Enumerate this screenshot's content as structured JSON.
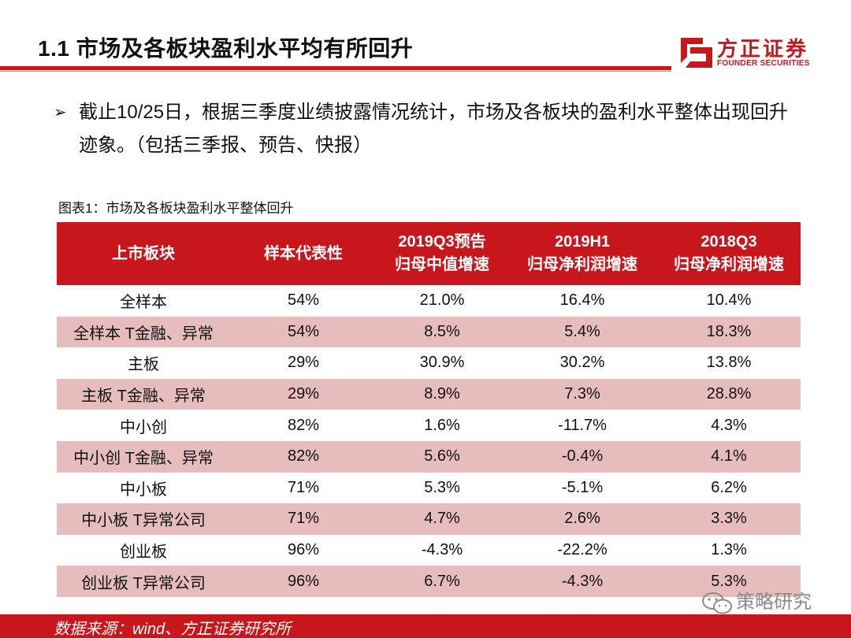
{
  "header": {
    "title": "1.1 市场及各板块盈利水平均有所回升",
    "logo_cn": "方正证券",
    "logo_en": "FOUNDER SECURITIES"
  },
  "bullet": {
    "symbol": "➢",
    "text": "截止10/25日，根据三季度业绩披露情况统计，市场及各板块的盈利水平整体出现回升迹象。（包括三季报、预告、快报）"
  },
  "table": {
    "caption": "图表1：市场及各板块盈利水平整体回升",
    "headers": [
      [
        "上市板块"
      ],
      [
        "样本代表性"
      ],
      [
        "2019Q3预告",
        "归母中值增速"
      ],
      [
        "2019H1",
        "归母净利润增速"
      ],
      [
        "2018Q3",
        "归母净利润增速"
      ]
    ],
    "rows": [
      [
        "全样本",
        "54%",
        "21.0%",
        "16.4%",
        "10.4%"
      ],
      [
        "全样本 T金融、异常",
        "54%",
        "8.5%",
        "5.4%",
        "18.3%"
      ],
      [
        "主板",
        "29%",
        "30.9%",
        "30.2%",
        "13.8%"
      ],
      [
        "主板 T金融、异常",
        "29%",
        "8.9%",
        "7.3%",
        "28.8%"
      ],
      [
        "中小创",
        "82%",
        "1.6%",
        "-11.7%",
        "4.3%"
      ],
      [
        "中小创 T金融、异常",
        "82%",
        "5.6%",
        "-0.4%",
        "4.1%"
      ],
      [
        "中小板",
        "71%",
        "5.3%",
        "-5.1%",
        "6.2%"
      ],
      [
        "中小板 T异常公司",
        "71%",
        "4.7%",
        "2.6%",
        "3.3%"
      ],
      [
        "创业板",
        "96%",
        "-4.3%",
        "-22.2%",
        "1.3%"
      ],
      [
        "创业板 T异常公司",
        "96%",
        "6.7%",
        "-4.3%",
        "5.3%"
      ]
    ]
  },
  "watermark": {
    "text": "策略研究"
  },
  "footer": {
    "source": "数据来源：wind、方正证券研究所"
  },
  "colors": {
    "brand_red": "#c8161d",
    "alt_row": "#e6bcbc"
  }
}
